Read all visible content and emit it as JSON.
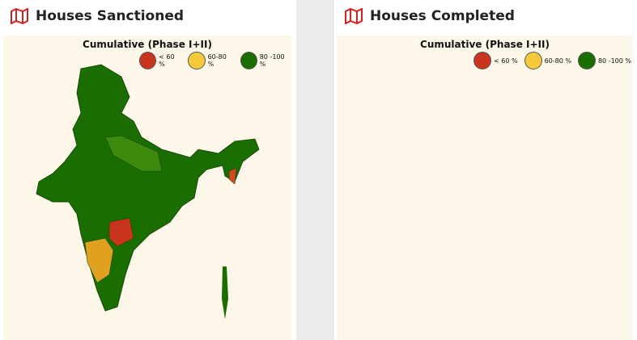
{
  "panels": [
    {
      "title": "Houses Sanctioned",
      "subtitle": "Cumulative (Phase I+II)",
      "legend": [
        "< 60 %",
        "60-80 %",
        "80 -100 %"
      ]
    },
    {
      "title": "Houses Completed",
      "subtitle": "Cumulative (Phase I+II)",
      "legend": [
        "< 60 %",
        "60-80 %",
        "80 -100 %"
      ]
    }
  ]
}
